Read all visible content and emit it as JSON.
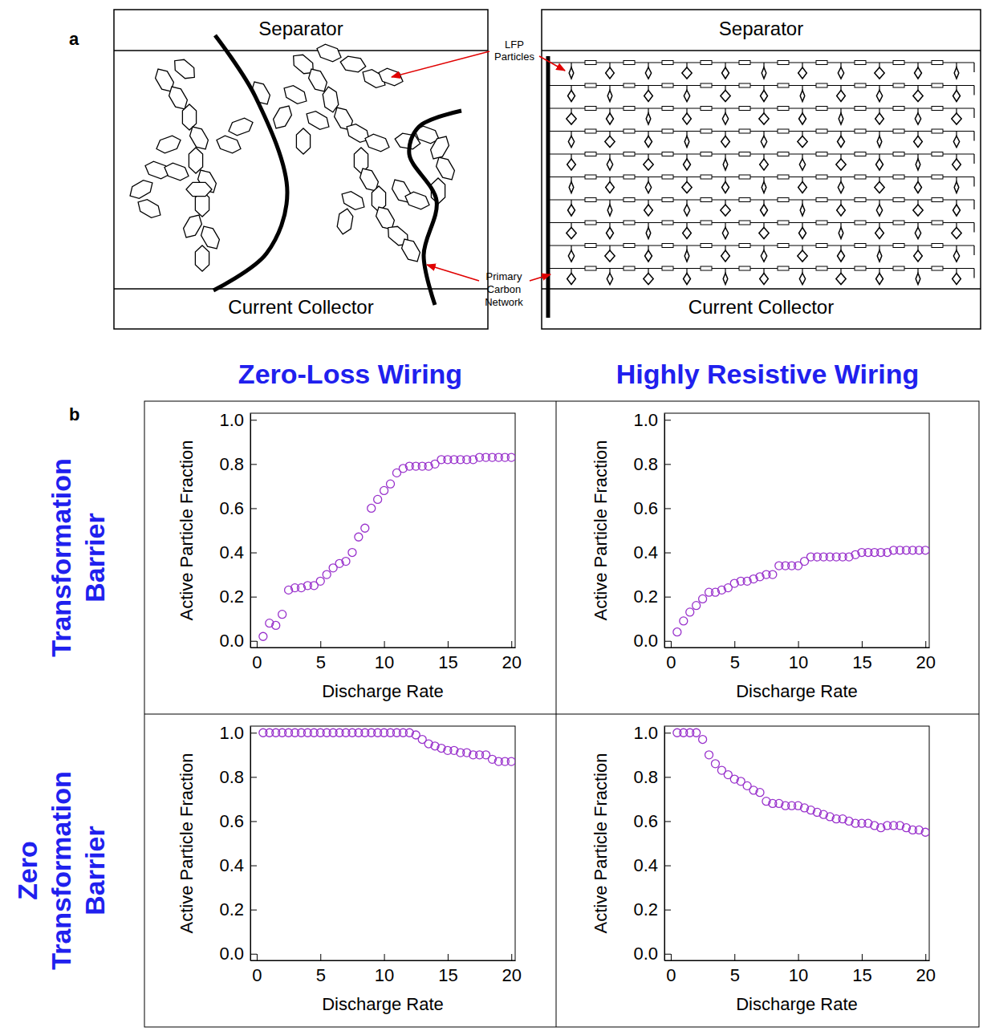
{
  "panel_a": {
    "letter": "a",
    "left_box": {
      "top": "Separator",
      "bottom": "Current Collector"
    },
    "right_box": {
      "top": "Separator",
      "bottom": "Current Collector"
    },
    "particles_label": "LFP Particles",
    "carbon_label": "Primary Carbon Network"
  },
  "panel_b": {
    "letter": "b",
    "column_heads": [
      "Zero-Loss Wiring",
      "Highly Resistive Wiring"
    ],
    "row_heads": [
      "Transformation Barrier",
      "Zero Transformation Barrier"
    ]
  },
  "chart_data": [
    {
      "type": "scatter",
      "x_label": "Discharge Rate",
      "y_label": "Active Particle Fraction",
      "color": "#9932cc",
      "marker": "open-circle",
      "x": [
        0.5,
        1,
        1.5,
        2,
        2.5,
        3,
        3.5,
        4,
        4.5,
        5,
        5.5,
        6,
        6.5,
        7,
        7.5,
        8,
        8.5,
        9,
        9.5,
        10,
        10.5,
        11,
        11.5,
        12,
        12.5,
        13,
        13.5,
        14,
        14.5,
        15,
        15.5,
        16,
        16.5,
        17,
        17.5,
        18,
        18.5,
        19,
        19.5,
        20
      ],
      "values": [
        0.02,
        0.08,
        0.07,
        0.12,
        0.23,
        0.24,
        0.24,
        0.25,
        0.25,
        0.27,
        0.3,
        0.33,
        0.35,
        0.36,
        0.4,
        0.47,
        0.51,
        0.6,
        0.64,
        0.68,
        0.71,
        0.76,
        0.78,
        0.79,
        0.79,
        0.79,
        0.79,
        0.8,
        0.82,
        0.82,
        0.82,
        0.82,
        0.82,
        0.82,
        0.83,
        0.83,
        0.83,
        0.83,
        0.83,
        0.83
      ],
      "xlim": [
        -0.5,
        20.3
      ],
      "ylim": [
        -0.03,
        1.03
      ],
      "xticks": [
        0,
        5,
        10,
        15,
        20
      ],
      "yticks": [
        {
          "value": 0,
          "label": "0.0"
        },
        0.2,
        0.4,
        0.6,
        0.8,
        {
          "value": 1,
          "label": "1.0"
        }
      ]
    },
    {
      "type": "scatter",
      "x_label": "Discharge Rate",
      "y_label": "Active Particle Fraction",
      "color": "#9932cc",
      "marker": "open-circle",
      "x": [
        0.5,
        1,
        1.5,
        2,
        2.5,
        3,
        3.5,
        4,
        4.5,
        5,
        5.5,
        6,
        6.5,
        7,
        7.5,
        8,
        8.5,
        9,
        9.5,
        10,
        10.5,
        11,
        11.5,
        12,
        12.5,
        13,
        13.5,
        14,
        14.5,
        15,
        15.5,
        16,
        16.5,
        17,
        17.5,
        18,
        18.5,
        19,
        19.5,
        20
      ],
      "values": [
        0.04,
        0.09,
        0.13,
        0.16,
        0.19,
        0.22,
        0.22,
        0.23,
        0.24,
        0.26,
        0.27,
        0.27,
        0.28,
        0.29,
        0.3,
        0.3,
        0.34,
        0.34,
        0.34,
        0.34,
        0.36,
        0.38,
        0.38,
        0.38,
        0.38,
        0.38,
        0.38,
        0.38,
        0.39,
        0.4,
        0.4,
        0.4,
        0.4,
        0.4,
        0.41,
        0.41,
        0.41,
        0.41,
        0.41,
        0.41
      ],
      "xlim": [
        -0.5,
        20.3
      ],
      "ylim": [
        -0.03,
        1.03
      ],
      "xticks": [
        0,
        5,
        10,
        15,
        20
      ],
      "yticks": [
        {
          "value": 0,
          "label": "0.0"
        },
        0.2,
        0.4,
        0.6,
        0.8,
        {
          "value": 1,
          "label": "1.0"
        }
      ]
    },
    {
      "type": "scatter",
      "x_label": "Discharge Rate",
      "y_label": "Active Particle Fraction",
      "color": "#9932cc",
      "marker": "open-circle",
      "x": [
        0.5,
        1,
        1.5,
        2,
        2.5,
        3,
        3.5,
        4,
        4.5,
        5,
        5.5,
        6,
        6.5,
        7,
        7.5,
        8,
        8.5,
        9,
        9.5,
        10,
        10.5,
        11,
        11.5,
        12,
        12.5,
        13,
        13.5,
        14,
        14.5,
        15,
        15.5,
        16,
        16.5,
        17,
        17.5,
        18,
        18.5,
        19,
        19.5,
        20
      ],
      "values": [
        1.0,
        1.0,
        1.0,
        1.0,
        1.0,
        1.0,
        1.0,
        1.0,
        1.0,
        1.0,
        1.0,
        1.0,
        1.0,
        1.0,
        1.0,
        1.0,
        1.0,
        1.0,
        1.0,
        1.0,
        1.0,
        1.0,
        1.0,
        1.0,
        0.99,
        0.97,
        0.95,
        0.94,
        0.93,
        0.92,
        0.92,
        0.91,
        0.91,
        0.9,
        0.9,
        0.9,
        0.88,
        0.87,
        0.87,
        0.87
      ],
      "xlim": [
        -0.5,
        20.3
      ],
      "ylim": [
        -0.03,
        1.03
      ],
      "xticks": [
        0,
        5,
        10,
        15,
        20
      ],
      "yticks": [
        {
          "value": 0,
          "label": "0.0"
        },
        0.2,
        0.4,
        0.6,
        0.8,
        {
          "value": 1,
          "label": "1.0"
        }
      ]
    },
    {
      "type": "scatter",
      "x_label": "Discharge Rate",
      "y_label": "Active Particle Fraction",
      "color": "#9932cc",
      "marker": "open-circle",
      "x": [
        0.5,
        1,
        1.5,
        2,
        2.5,
        3,
        3.5,
        4,
        4.5,
        5,
        5.5,
        6,
        6.5,
        7,
        7.5,
        8,
        8.5,
        9,
        9.5,
        10,
        10.5,
        11,
        11.5,
        12,
        12.5,
        13,
        13.5,
        14,
        14.5,
        15,
        15.5,
        16,
        16.5,
        17,
        17.5,
        18,
        18.5,
        19,
        19.5,
        20
      ],
      "values": [
        1.0,
        1.0,
        1.0,
        1.0,
        0.97,
        0.9,
        0.86,
        0.83,
        0.81,
        0.79,
        0.78,
        0.76,
        0.74,
        0.73,
        0.69,
        0.68,
        0.68,
        0.67,
        0.67,
        0.67,
        0.66,
        0.65,
        0.64,
        0.63,
        0.62,
        0.61,
        0.61,
        0.6,
        0.59,
        0.59,
        0.59,
        0.58,
        0.57,
        0.58,
        0.58,
        0.58,
        0.57,
        0.56,
        0.56,
        0.55
      ],
      "xlim": [
        -0.5,
        20.3
      ],
      "ylim": [
        -0.03,
        1.03
      ],
      "xticks": [
        0,
        5,
        10,
        15,
        20
      ],
      "yticks": [
        {
          "value": 0,
          "label": "0.0"
        },
        0.2,
        0.4,
        0.6,
        0.8,
        {
          "value": 1,
          "label": "1.0"
        }
      ]
    }
  ]
}
